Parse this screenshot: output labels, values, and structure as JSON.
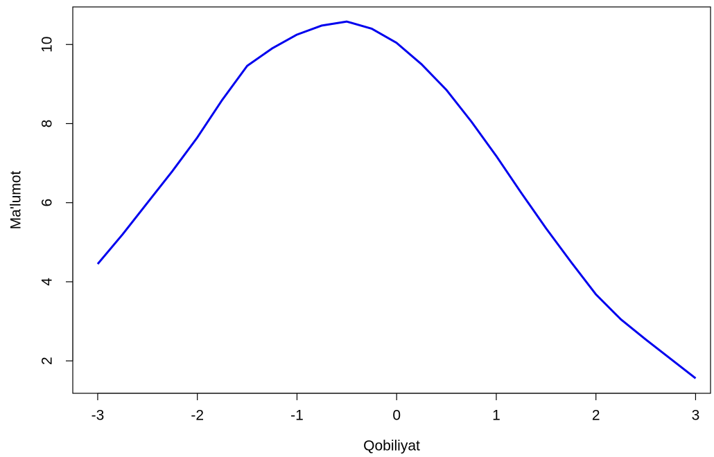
{
  "chart_data": {
    "type": "line",
    "xlabel": "Qobiliyat",
    "ylabel": "Ma'lumot",
    "x": [
      -3,
      -2.75,
      -2.5,
      -2.25,
      -2,
      -1.75,
      -1.5,
      -1.25,
      -1,
      -0.75,
      -0.5,
      -0.25,
      0,
      0.25,
      0.5,
      0.75,
      1,
      1.25,
      1.5,
      1.75,
      2,
      2.25,
      2.5,
      2.75,
      3
    ],
    "values": [
      4.45,
      5.2,
      6.0,
      6.8,
      7.65,
      8.6,
      9.46,
      9.9,
      10.25,
      10.48,
      10.58,
      10.4,
      10.04,
      9.5,
      8.85,
      8.05,
      7.18,
      6.25,
      5.35,
      4.5,
      3.68,
      3.05,
      2.54,
      2.05,
      1.56
    ],
    "color": "#0000ee",
    "xlim": [
      -3.25,
      3.15
    ],
    "ylim": [
      1.18,
      10.95
    ],
    "xticks": [
      -3,
      -2,
      -1,
      0,
      1,
      2,
      3
    ],
    "yticks": [
      2,
      4,
      6,
      8,
      10
    ]
  }
}
